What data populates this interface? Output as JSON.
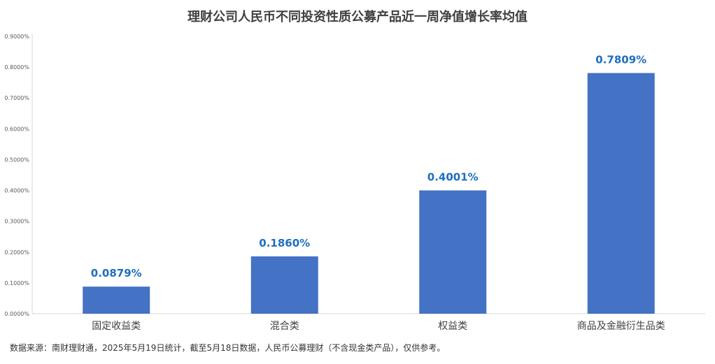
{
  "chart_data": {
    "type": "bar",
    "title": "理财公司人民币不同投资性质公募产品近一周净值增长率均值",
    "categories": [
      "固定收益类",
      "混合类",
      "权益类",
      "商品及金融衍生品类"
    ],
    "values": [
      0.0879,
      0.186,
      0.4001,
      0.7809
    ],
    "data_labels": [
      "0.0879%",
      "0.1860%",
      "0.4001%",
      "0.7809%"
    ],
    "y_ticks": [
      "0.0000%",
      "0.1000%",
      "0.2000%",
      "0.3000%",
      "0.4000%",
      "0.5000%",
      "0.6000%",
      "0.7000%",
      "0.8000%",
      "0.9000%"
    ],
    "ylim": [
      0,
      0.9
    ],
    "grid": false,
    "bar_color": "#4472C4",
    "label_color": "#1F6FBF"
  },
  "note": "数据来源：南财理财通，2025年5月19日统计，截至5月18日数据，人民币公募理财（不含现金类产品），仅供参考。"
}
